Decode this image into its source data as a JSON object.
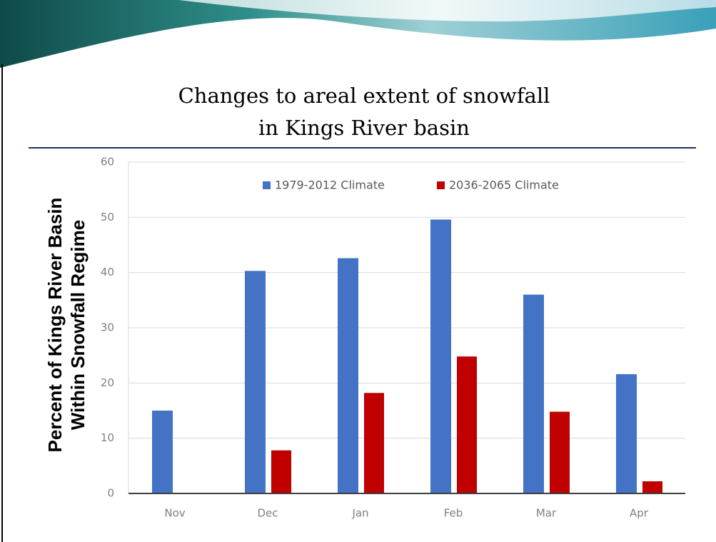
{
  "chart_data": {
    "type": "bar",
    "title_lines": [
      "Changes to areal extent of snowfall",
      "in Kings River basin"
    ],
    "ylabel_lines": [
      "Percent of Kings River Basin",
      "Within Snowfall Regime"
    ],
    "categories": [
      "Nov",
      "Dec",
      "Jan",
      "Feb",
      "Mar",
      "Apr"
    ],
    "series": [
      {
        "name": "1979-2012 Climate",
        "color": "#4472c4",
        "values": [
          15,
          40.3,
          42.6,
          49.6,
          36,
          21.6
        ]
      },
      {
        "name": "2036-2065 Climate",
        "color": "#c00000",
        "values": [
          0,
          7.8,
          18.2,
          24.8,
          14.8,
          2.2
        ]
      }
    ],
    "ylim": [
      0,
      60
    ],
    "yticks": [
      0,
      10,
      20,
      30,
      40,
      50,
      60
    ],
    "grid": true
  }
}
